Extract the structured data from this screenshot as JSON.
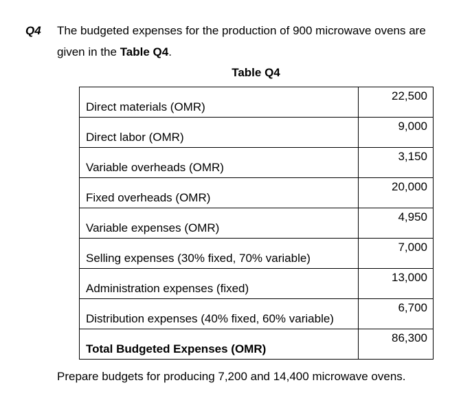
{
  "question": {
    "number": "Q4",
    "line1": "The budgeted expenses for the production of 900 microwave ovens are",
    "line2_prefix": "given in the ",
    "line2_bold": "Table Q4",
    "line2_suffix": "."
  },
  "table": {
    "caption": "Table Q4",
    "rows": [
      {
        "label": "Direct materials (OMR)",
        "value": "22,500"
      },
      {
        "label": "Direct labor (OMR)",
        "value": "9,000"
      },
      {
        "label": "Variable overheads (OMR)",
        "value": "3,150"
      },
      {
        "label": "Fixed overheads (OMR)",
        "value": "20,000"
      },
      {
        "label": "Variable expenses (OMR)",
        "value": "4,950"
      },
      {
        "label": "Selling expenses (30% fixed, 70% variable)",
        "value": "7,000"
      },
      {
        "label": "Administration expenses (fixed)",
        "value": "13,000"
      },
      {
        "label": "Distribution expenses (40% fixed, 60% variable)",
        "value": "6,700"
      }
    ],
    "total": {
      "label": "Total Budgeted Expenses (OMR)",
      "value": "86,300"
    }
  },
  "prompt": "Prepare budgets for producing 7,200 and 14,400 microwave ovens."
}
